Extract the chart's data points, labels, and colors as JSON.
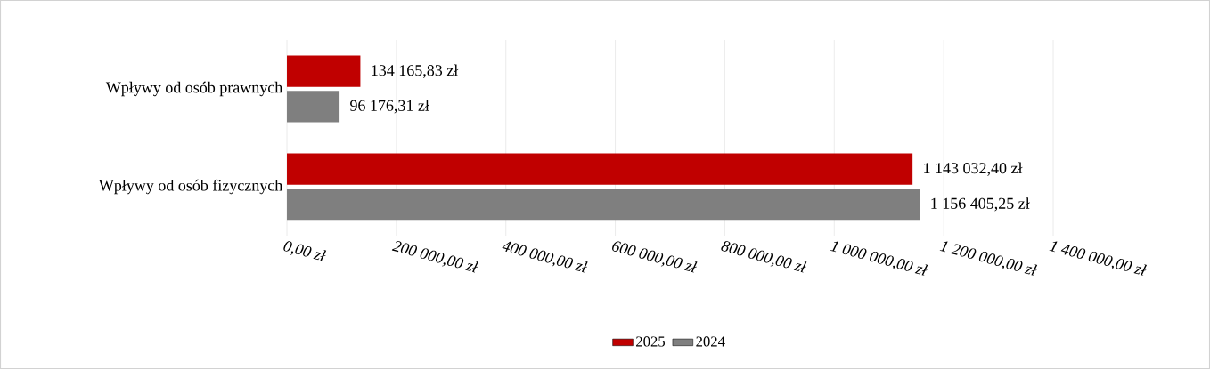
{
  "chart_data": {
    "type": "bar",
    "orientation": "horizontal",
    "categories": [
      "Wpływy od osób prawnych",
      "Wpływy od osób fizycznych"
    ],
    "series": [
      {
        "name": "2025",
        "color": "#c00000",
        "values": [
          134165.83,
          1143032.4
        ],
        "value_labels": [
          "134 165,83 zł",
          "1 143 032,40 zł"
        ]
      },
      {
        "name": "2024",
        "color": "#7f7f7f",
        "values": [
          96176.31,
          1156405.25
        ],
        "value_labels": [
          "96 176,31 zł",
          "1 156 405,25 zł"
        ]
      }
    ],
    "xlim": [
      0,
      1400000
    ],
    "xticks": [
      {
        "value": 0,
        "label": "0,00 zł"
      },
      {
        "value": 200000,
        "label": "200 000,00 zł"
      },
      {
        "value": 400000,
        "label": "400 000,00 zł"
      },
      {
        "value": 600000,
        "label": "600 000,00 zł"
      },
      {
        "value": 800000,
        "label": "800 000,00 zł"
      },
      {
        "value": 1000000,
        "label": "1 000 000,00 zł"
      },
      {
        "value": 1200000,
        "label": "1 200 000,00 zł"
      },
      {
        "value": 1400000,
        "label": "1 400 000,00 zł"
      }
    ],
    "grid": "x",
    "legend": "bottom"
  }
}
